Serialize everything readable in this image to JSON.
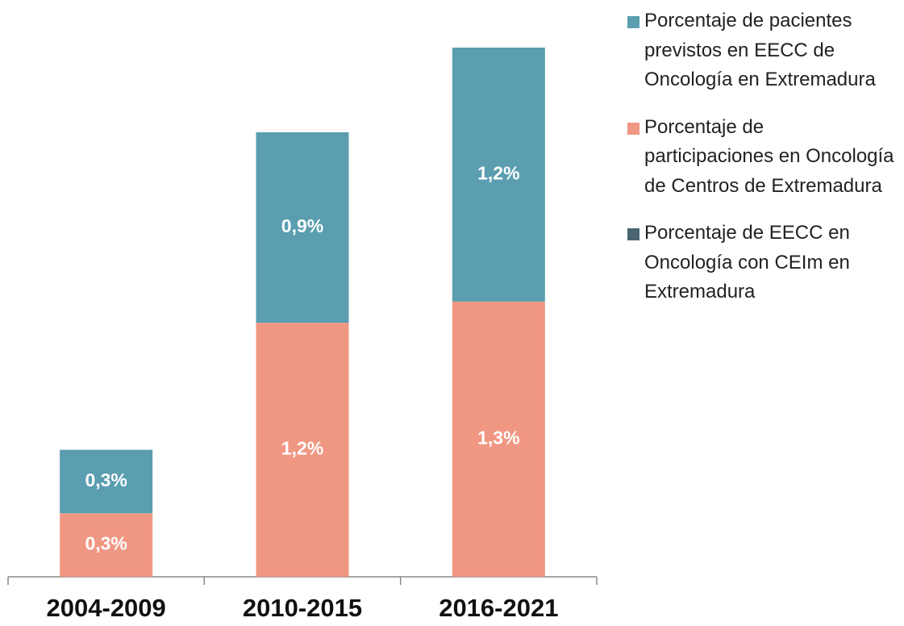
{
  "chart_data": {
    "type": "bar",
    "stacked": true,
    "categories": [
      "2004-2009",
      "2010-2015",
      "2016-2021"
    ],
    "series": [
      {
        "name": "Porcentaje de pacientes previstos en EECC de Oncología en Extremadura",
        "color": "#5a9eb0",
        "values": [
          0.3,
          0.9,
          1.2
        ],
        "value_labels": [
          "0,3%",
          "0,9%",
          "1,2%"
        ]
      },
      {
        "name": "Porcentaje de participaciones en Oncología de Centros de Extremadura",
        "color": "#f09784",
        "values": [
          0.3,
          1.2,
          1.3
        ],
        "value_labels": [
          "0,3%",
          "1,2%",
          "1,3%"
        ]
      },
      {
        "name": "Porcentaje de EECC en Oncología con CEIm en Extremadura",
        "color": "#4a6473",
        "values": [
          null,
          null,
          null
        ]
      }
    ]
  }
}
